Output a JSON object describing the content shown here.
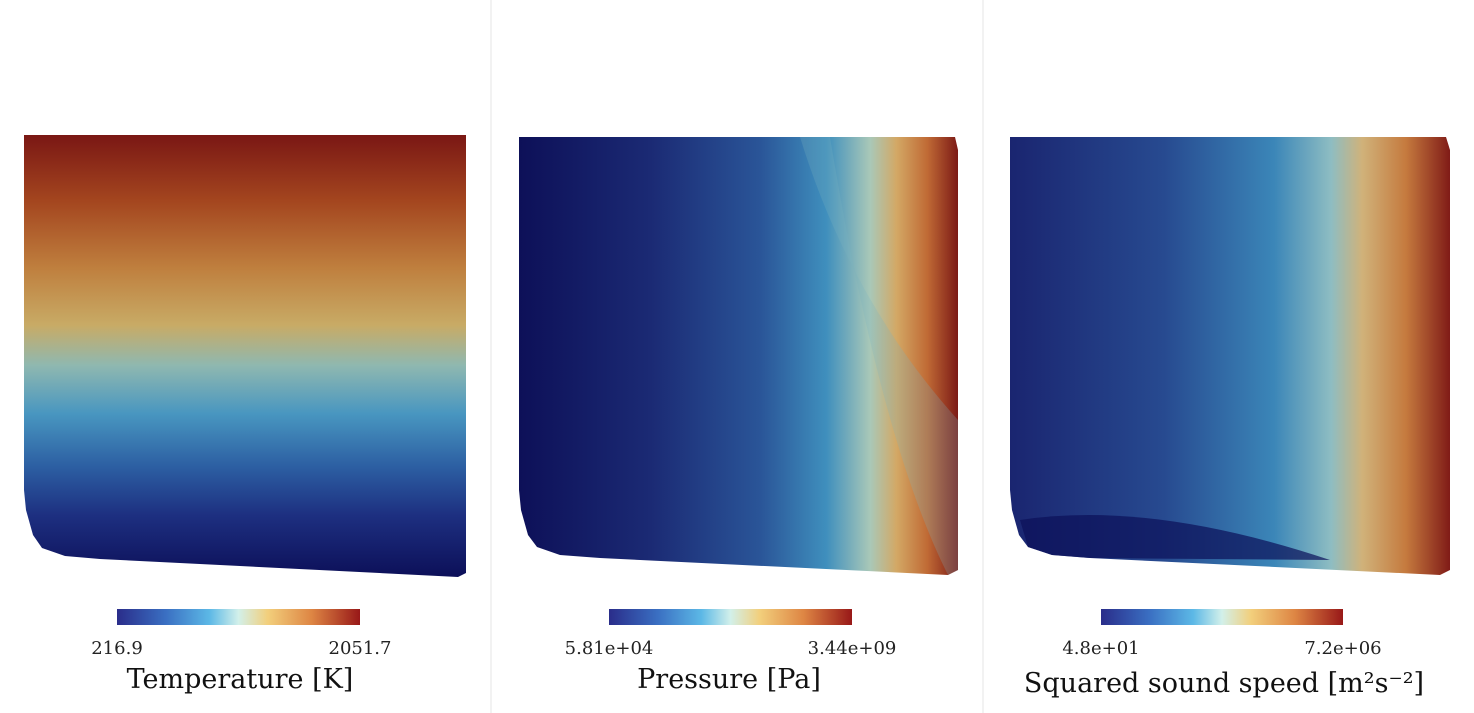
{
  "panels": [
    {
      "colorbar": {
        "min": "216.9",
        "max": "2051.7"
      },
      "label": "Temperature [K]"
    },
    {
      "colorbar": {
        "min": "5.81e+04",
        "max": "3.44e+09"
      },
      "label": "Pressure [Pa]"
    },
    {
      "colorbar": {
        "min": "4.8e+01",
        "max": "7.2e+06"
      },
      "label": "Squared sound speed [m²s⁻²]"
    }
  ]
}
